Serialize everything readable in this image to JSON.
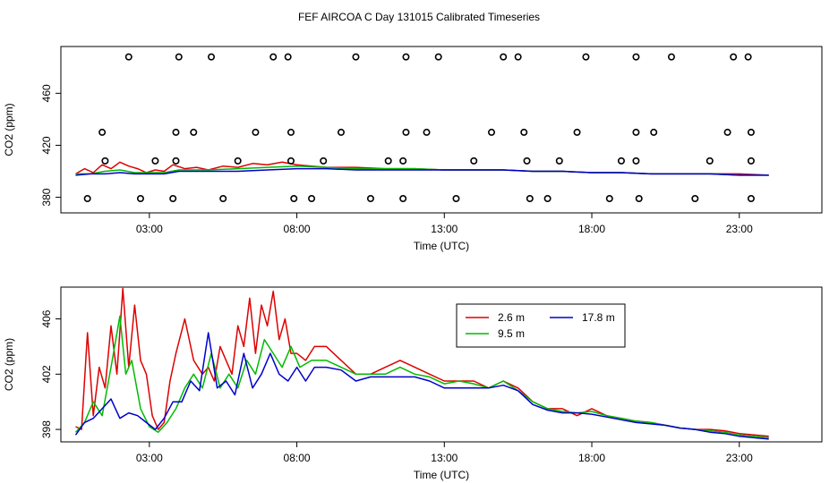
{
  "page": {
    "title": "FEF AIRCOA C  Day 131015  Calibrated Timeseries"
  },
  "colors": {
    "red": "#dd0000",
    "green": "#00bb00",
    "blue": "#0000cc",
    "axis": "#000000",
    "circle": "#000000"
  },
  "chart_data": [
    {
      "type": "scatter",
      "title": "",
      "xlabel": "Time (UTC)",
      "ylabel": "CO2 (ppm)",
      "xlim": [
        0,
        25.8
      ],
      "ylim": [
        368,
        496
      ],
      "x_ticks": [
        3,
        8,
        13,
        18,
        23
      ],
      "x_tick_labels": [
        "03:00",
        "08:00",
        "13:00",
        "18:00",
        "23:00"
      ],
      "y_ticks": [
        380,
        420,
        460
      ],
      "y_tick_labels": [
        "380",
        "420",
        "460"
      ],
      "grid": false,
      "legend": "none",
      "series": [
        {
          "color": "red",
          "kind": "line",
          "x": [
            0.5,
            0.8,
            1.1,
            1.4,
            1.7,
            2.0,
            2.3,
            2.6,
            2.9,
            3.2,
            3.5,
            3.8,
            4.2,
            4.6,
            5.0,
            5.5,
            6.0,
            6.5,
            7.0,
            7.5,
            8.0,
            8.5,
            9.0,
            9.5,
            10.0,
            11.0,
            12.0,
            13.0,
            14.0,
            15.0,
            16.0,
            17.0,
            18.0,
            19.0,
            20.0,
            21.0,
            22.0,
            23.0,
            24.0
          ],
          "y": [
            398,
            402,
            399,
            405,
            402,
            407,
            404,
            402,
            399,
            401,
            400,
            405,
            402,
            403,
            401,
            404,
            403,
            406,
            405,
            407,
            405,
            404,
            403,
            403,
            403,
            402,
            402,
            401,
            401,
            401,
            400,
            400,
            399,
            399,
            398,
            398,
            398,
            398,
            397
          ]
        },
        {
          "color": "green",
          "kind": "line",
          "x": [
            0.5,
            1.0,
            1.5,
            2.0,
            2.5,
            3.0,
            3.5,
            4.0,
            5.0,
            6.0,
            7.0,
            8.0,
            9.0,
            10.0,
            11.0,
            12.0,
            13.0,
            14.0,
            15.0,
            16.0,
            17.0,
            18.0,
            19.0,
            20.0,
            21.0,
            22.0,
            23.0,
            24.0
          ],
          "y": [
            398,
            398,
            400,
            401,
            399,
            399,
            399,
            401,
            401,
            402,
            403,
            404,
            403,
            402,
            402,
            402,
            401,
            401,
            401,
            400,
            400,
            399,
            399,
            398,
            398,
            398,
            397,
            397
          ]
        },
        {
          "color": "blue",
          "kind": "line",
          "x": [
            0.5,
            1.0,
            1.5,
            2.0,
            2.5,
            3.0,
            3.5,
            4.0,
            5.0,
            6.0,
            7.0,
            8.0,
            9.0,
            10.0,
            11.0,
            12.0,
            13.0,
            14.0,
            15.0,
            16.0,
            17.0,
            18.0,
            19.0,
            20.0,
            21.0,
            22.0,
            23.0,
            24.0
          ],
          "y": [
            397,
            398,
            398,
            399,
            398,
            398,
            398,
            400,
            400,
            400,
            401,
            402,
            402,
            401,
            401,
            401,
            401,
            401,
            401,
            400,
            400,
            399,
            399,
            398,
            398,
            398,
            397,
            397
          ]
        },
        {
          "color": "circle",
          "kind": "points",
          "name": "",
          "x": [
            2.3,
            4.0,
            5.1,
            7.2,
            7.7,
            10.0,
            11.7,
            12.8,
            15.0,
            15.5,
            17.8,
            19.5,
            20.7,
            22.8,
            23.3,
            1.4,
            3.9,
            4.5,
            6.6,
            7.8,
            9.5,
            11.7,
            12.4,
            14.6,
            15.7,
            17.5,
            19.5,
            20.1,
            22.6,
            23.4,
            1.5,
            3.2,
            3.9,
            6.0,
            7.8,
            8.9,
            11.1,
            11.6,
            14.0,
            15.8,
            16.9,
            19.0,
            19.5,
            22.0,
            23.4,
            0.9,
            2.7,
            3.8,
            5.5,
            7.9,
            8.5,
            10.5,
            11.6,
            13.4,
            15.9,
            16.5,
            18.6,
            19.6,
            21.5,
            23.4
          ],
          "y": [
            488,
            488,
            488,
            488,
            488,
            488,
            488,
            488,
            488,
            488,
            488,
            488,
            488,
            488,
            488,
            430,
            430,
            430,
            430,
            430,
            430,
            430,
            430,
            430,
            430,
            430,
            430,
            430,
            430,
            430,
            408,
            408,
            408,
            408,
            408,
            408,
            408,
            408,
            408,
            408,
            408,
            408,
            408,
            408,
            408,
            379,
            379,
            379,
            379,
            379,
            379,
            379,
            379,
            379,
            379,
            379,
            379,
            379,
            379,
            379
          ]
        }
      ]
    },
    {
      "type": "line",
      "title": "",
      "xlabel": "Time (UTC)",
      "ylabel": "CO2 (ppm)",
      "xlim": [
        0,
        25.8
      ],
      "ylim": [
        397.1,
        408.3
      ],
      "x_ticks": [
        3,
        8,
        13,
        18,
        23
      ],
      "x_tick_labels": [
        "03:00",
        "08:00",
        "13:00",
        "18:00",
        "23:00"
      ],
      "y_ticks": [
        398,
        402,
        406
      ],
      "y_tick_labels": [
        "398",
        "402",
        "406"
      ],
      "grid": false,
      "legend": "top-center",
      "series": [
        {
          "name": "2.6 m",
          "color": "red",
          "x": [
            0.5,
            0.7,
            0.9,
            1.1,
            1.3,
            1.5,
            1.7,
            1.9,
            2.1,
            2.3,
            2.5,
            2.7,
            2.9,
            3.1,
            3.3,
            3.5,
            3.7,
            3.9,
            4.2,
            4.5,
            4.8,
            5.0,
            5.2,
            5.4,
            5.6,
            5.8,
            6.0,
            6.2,
            6.4,
            6.6,
            6.8,
            7.0,
            7.2,
            7.4,
            7.6,
            7.8,
            8.0,
            8.3,
            8.6,
            9.0,
            9.5,
            10.0,
            10.5,
            11.0,
            11.5,
            12.0,
            12.5,
            13.0,
            13.5,
            14.0,
            14.5,
            15.0,
            15.5,
            16.0,
            16.5,
            17.0,
            17.5,
            18.0,
            18.5,
            19.0,
            19.5,
            20.0,
            20.5,
            21.0,
            21.5,
            22.0,
            22.5,
            23.0,
            23.5,
            24.0
          ],
          "y": [
            398.2,
            398.0,
            405.0,
            399.0,
            402.5,
            401.0,
            405.5,
            402.0,
            408.2,
            402.5,
            407.0,
            403.0,
            402.0,
            399.0,
            398.0,
            398.5,
            401.5,
            403.5,
            406.0,
            403.0,
            402.0,
            402.5,
            401.5,
            404.0,
            403.0,
            402.0,
            405.5,
            404.0,
            407.5,
            403.5,
            407.0,
            405.5,
            408.0,
            404.5,
            406.0,
            403.5,
            403.5,
            403.0,
            404.0,
            404.0,
            403.0,
            402.0,
            402.0,
            402.5,
            403.0,
            402.5,
            402.0,
            401.5,
            401.5,
            401.5,
            401.0,
            401.5,
            401.0,
            400.0,
            399.5,
            399.5,
            399.0,
            399.5,
            399.0,
            398.8,
            398.6,
            398.5,
            398.3,
            398.1,
            398.0,
            398.0,
            397.9,
            397.7,
            397.6,
            397.5
          ]
        },
        {
          "name": "9.5 m",
          "color": "green",
          "x": [
            0.5,
            0.8,
            1.1,
            1.4,
            1.7,
            2.0,
            2.2,
            2.4,
            2.7,
            3.0,
            3.3,
            3.6,
            3.9,
            4.2,
            4.5,
            4.8,
            5.1,
            5.4,
            5.7,
            6.0,
            6.3,
            6.6,
            6.9,
            7.2,
            7.5,
            7.8,
            8.1,
            8.5,
            9.0,
            9.5,
            10.0,
            10.5,
            11.0,
            11.5,
            12.0,
            12.5,
            13.0,
            13.5,
            14.0,
            14.5,
            15.0,
            15.5,
            16.0,
            16.5,
            17.0,
            17.5,
            18.0,
            18.5,
            19.0,
            19.5,
            20.0,
            20.5,
            21.0,
            21.5,
            22.0,
            22.5,
            23.0,
            23.5,
            24.0
          ],
          "y": [
            397.8,
            398.5,
            400.0,
            399.0,
            402.5,
            406.2,
            402.0,
            403.0,
            399.5,
            398.2,
            397.8,
            398.5,
            399.5,
            401.0,
            402.0,
            401.0,
            403.5,
            401.0,
            402.0,
            401.0,
            403.0,
            402.0,
            404.5,
            403.5,
            402.5,
            404.0,
            402.5,
            403.0,
            403.0,
            402.5,
            402.0,
            402.0,
            402.0,
            402.5,
            402.0,
            401.8,
            401.3,
            401.5,
            401.3,
            401.0,
            401.5,
            400.8,
            400.0,
            399.5,
            399.3,
            399.2,
            399.3,
            399.0,
            398.8,
            398.6,
            398.5,
            398.3,
            398.1,
            398.0,
            397.9,
            397.8,
            397.6,
            397.5,
            397.4
          ]
        },
        {
          "name": "17.8 m",
          "color": "blue",
          "x": [
            0.5,
            0.8,
            1.1,
            1.4,
            1.7,
            2.0,
            2.3,
            2.6,
            2.9,
            3.2,
            3.5,
            3.8,
            4.1,
            4.4,
            4.7,
            5.0,
            5.3,
            5.6,
            5.9,
            6.2,
            6.5,
            6.8,
            7.1,
            7.4,
            7.7,
            8.0,
            8.3,
            8.6,
            9.0,
            9.5,
            10.0,
            10.5,
            11.0,
            11.5,
            12.0,
            12.5,
            13.0,
            13.5,
            14.0,
            14.5,
            15.0,
            15.5,
            16.0,
            16.5,
            17.0,
            17.5,
            18.0,
            18.5,
            19.0,
            19.5,
            20.0,
            20.5,
            21.0,
            21.5,
            22.0,
            22.5,
            23.0,
            23.5,
            24.0
          ],
          "y": [
            397.6,
            398.5,
            398.8,
            399.5,
            400.2,
            398.8,
            399.2,
            399.0,
            398.5,
            398.0,
            398.8,
            400.0,
            400.0,
            401.5,
            400.8,
            405.0,
            401.0,
            401.5,
            400.5,
            403.5,
            401.0,
            402.0,
            403.5,
            402.0,
            401.5,
            402.5,
            401.5,
            402.5,
            402.5,
            402.3,
            401.5,
            401.8,
            401.8,
            401.8,
            401.8,
            401.5,
            401.0,
            401.0,
            401.0,
            401.0,
            401.2,
            400.8,
            399.8,
            399.4,
            399.2,
            399.2,
            399.1,
            398.9,
            398.7,
            398.5,
            398.4,
            398.3,
            398.1,
            398.0,
            397.8,
            397.7,
            397.5,
            397.4,
            397.3
          ]
        }
      ]
    }
  ]
}
